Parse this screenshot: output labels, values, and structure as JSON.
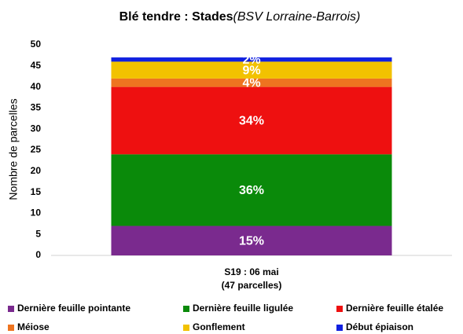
{
  "chart_data": {
    "type": "stacked_bar",
    "title": "Blé tendre : Stades",
    "subtitle": "(BSV Lorraine-Barrois)",
    "y_label": "Nombre de parcelles",
    "categories": [
      "S19 : 06 mai"
    ],
    "category_sublabels": [
      "(47 parcelles)"
    ],
    "series": [
      {
        "name": "Dernière feuille pointante",
        "color": "#7a2a8e",
        "values": [
          7
        ],
        "value_labels": [
          "15%"
        ]
      },
      {
        "name": "Dernière feuille ligulée",
        "color": "#0a8a0a",
        "values": [
          17
        ],
        "value_labels": [
          "36%"
        ]
      },
      {
        "name": "Dernière feuille étalée",
        "color": "#ee1010",
        "values": [
          16
        ],
        "value_labels": [
          "34%"
        ]
      },
      {
        "name": "Méiose",
        "color": "#ee7420",
        "values": [
          2
        ],
        "value_labels": [
          "4%"
        ]
      },
      {
        "name": "Gonflement",
        "color": "#f2c200",
        "values": [
          4
        ],
        "value_labels": [
          "9%"
        ]
      },
      {
        "name": "Début épiaison",
        "color": "#1020e0",
        "values": [
          1
        ],
        "value_labels": [
          "2%"
        ]
      }
    ],
    "ylim": [
      0,
      50
    ],
    "yticks": [
      0,
      5,
      10,
      15,
      20,
      25,
      30,
      35,
      40,
      45,
      50
    ],
    "grid": false
  }
}
